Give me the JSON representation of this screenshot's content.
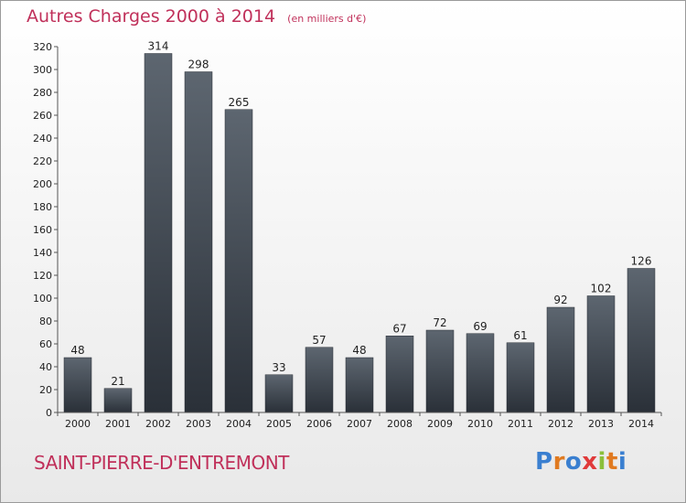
{
  "header": {
    "title": "Autres Charges 2000 à 2014",
    "unit": "(en milliers d'€)"
  },
  "footer": {
    "place": "SAINT-PIERRE-D'ENTREMONT",
    "brand": "Proxiti"
  },
  "colors": {
    "accent": "#c0305a",
    "bar_top": "#5d6670",
    "bar_bottom": "#2a3038",
    "logo_letters": [
      "#3a7fd0",
      "#e07a20",
      "#3a7fd0",
      "#e03a3a",
      "#8bbf3a",
      "#e07a20",
      "#3a7fd0"
    ]
  },
  "chart_data": {
    "type": "bar",
    "title": "Autres Charges 2000 à 2014",
    "subtitle": "(en milliers d'€)",
    "categories": [
      "2000",
      "2001",
      "2002",
      "2003",
      "2004",
      "2005",
      "2006",
      "2007",
      "2008",
      "2009",
      "2010",
      "2011",
      "2012",
      "2013",
      "2014"
    ],
    "values": [
      48,
      21,
      314,
      298,
      265,
      33,
      57,
      48,
      67,
      72,
      69,
      61,
      92,
      102,
      126
    ],
    "ylim": [
      0,
      320
    ],
    "yticks": [
      0,
      20,
      40,
      60,
      80,
      100,
      120,
      140,
      160,
      180,
      200,
      220,
      240,
      260,
      280,
      300,
      320
    ],
    "grid": false,
    "data_labels": true
  }
}
